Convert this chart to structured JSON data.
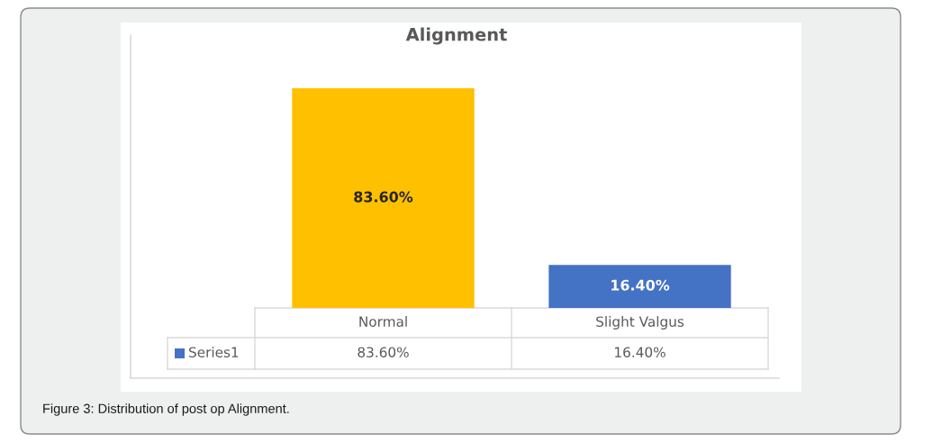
{
  "chart_data": {
    "type": "bar",
    "title": "Alignment",
    "categories": [
      "Normal",
      "Slight Valgus"
    ],
    "series": [
      {
        "name": "Series1",
        "color": "#4472c4",
        "colors": [
          "#ffc000",
          "#4472c4"
        ],
        "values": [
          83.6,
          16.4
        ],
        "value_labels": [
          "83.60%",
          "16.40%"
        ]
      }
    ],
    "legend": "bottom left",
    "annotations": [
      "Figure 3: Distribution of post op Alignment."
    ]
  }
}
